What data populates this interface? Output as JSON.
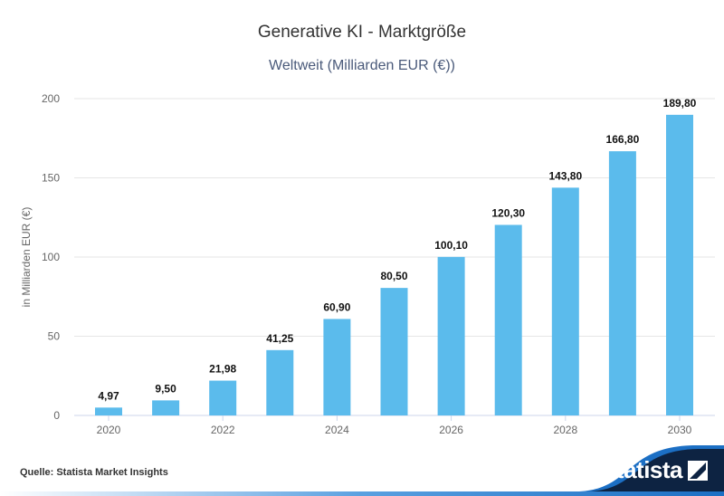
{
  "title": "Generative KI - Marktgröße",
  "subtitle": "Weltweit (Milliarden EUR (€))",
  "source": "Quelle: Statista Market Insights",
  "logo_text": "statista",
  "colors": {
    "bar": "#5bbbec",
    "grid": "#e6e6e6",
    "footer_dark": "#0d2342",
    "footer_blue": "#1c6fc4"
  },
  "chart_data": {
    "type": "bar",
    "categories": [
      "2020",
      "2021",
      "2022",
      "2023",
      "2024",
      "2025",
      "2026",
      "2027",
      "2028",
      "2029",
      "2030"
    ],
    "values": [
      4.97,
      9.5,
      21.98,
      41.25,
      60.9,
      80.5,
      100.1,
      120.3,
      143.8,
      166.8,
      189.8
    ],
    "data_labels": [
      "4,97",
      "9,50",
      "21,98",
      "41,25",
      "60,90",
      "80,50",
      "100,10",
      "120,30",
      "143,80",
      "166,80",
      "189,80"
    ],
    "x_tick_labels": [
      "2020",
      "2022",
      "2024",
      "2026",
      "2028",
      "2030"
    ],
    "y_ticks": [
      0,
      50,
      100,
      150,
      200
    ],
    "ylabel": "in Milliarden EUR (€)",
    "ylim": [
      0,
      200
    ],
    "grid": true
  }
}
